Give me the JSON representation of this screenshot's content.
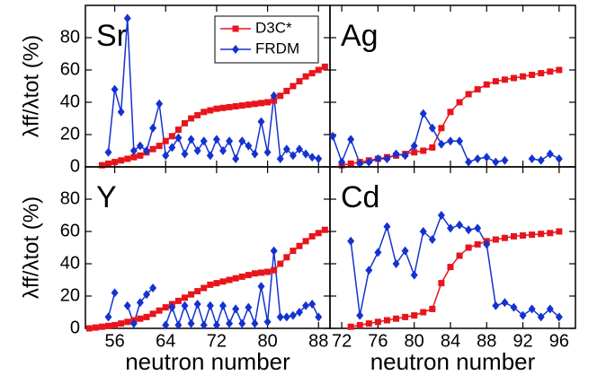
{
  "chart_data": [
    {
      "type": "line",
      "panel_label": "Sr",
      "y_label": "λff/λtot (%)",
      "x": [
        54,
        55,
        56,
        57,
        58,
        59,
        60,
        61,
        62,
        63,
        64,
        65,
        66,
        67,
        68,
        69,
        70,
        71,
        72,
        73,
        74,
        75,
        76,
        77,
        78,
        79,
        80,
        81,
        82,
        83,
        84,
        85,
        86,
        87,
        88,
        89
      ],
      "series": [
        {
          "name": "D3C*",
          "color": "#e8141c",
          "marker": "square",
          "values": [
            1,
            2,
            3,
            4,
            5,
            6,
            7,
            9,
            11,
            13,
            16,
            19,
            23,
            27,
            30,
            32,
            34,
            35,
            36,
            36.5,
            37,
            37.5,
            38,
            38.5,
            39,
            39.5,
            40,
            41,
            44,
            47,
            50,
            53,
            56,
            58,
            60,
            62
          ]
        },
        {
          "name": "FRDM",
          "color": "#1432d0",
          "marker": "diamond",
          "values": [
            null,
            9,
            48,
            34,
            92,
            10,
            13,
            10,
            24,
            39,
            7,
            12,
            18,
            8,
            17,
            10,
            16,
            7,
            17,
            10,
            16,
            5,
            16,
            13,
            8,
            28,
            9,
            44,
            5,
            11,
            7,
            11,
            8,
            6,
            5,
            null
          ]
        }
      ],
      "xlim": [
        51.4,
        89.8
      ],
      "ylim": [
        0,
        100
      ],
      "xticks": [
        56,
        64,
        72,
        80,
        88
      ],
      "yticks": [
        0,
        20,
        40,
        60,
        80
      ]
    },
    {
      "type": "line",
      "panel_label": "Ag",
      "x": [
        71,
        72,
        73,
        74,
        75,
        76,
        77,
        78,
        79,
        80,
        81,
        82,
        83,
        84,
        85,
        86,
        87,
        88,
        89,
        90,
        91,
        92,
        93,
        94,
        95,
        96
      ],
      "series": [
        {
          "color": "#e8141c",
          "marker": "square",
          "values": [
            null,
            1,
            2,
            3,
            4,
            5,
            6,
            7,
            8,
            9,
            10,
            12,
            24,
            34,
            40,
            45,
            48,
            51,
            53,
            54,
            55,
            56,
            57,
            58,
            59,
            60
          ]
        },
        {
          "color": "#1432d0",
          "marker": "diamond",
          "values": [
            19,
            3,
            17,
            2,
            3,
            5,
            5,
            8,
            7,
            13,
            33,
            24,
            14,
            16,
            16,
            3,
            5,
            6,
            3,
            4,
            null,
            null,
            5,
            4,
            8,
            5
          ]
        }
      ],
      "xlim": [
        70.7,
        97.8
      ],
      "ylim": [
        0,
        100
      ],
      "xticks": [
        72,
        76,
        80,
        84,
        88,
        92,
        96
      ],
      "yticks": [
        0,
        20,
        40,
        60,
        80
      ]
    },
    {
      "type": "line",
      "panel_label": "Y",
      "y_label": "λff/λtot (%)",
      "x_label": "neutron number",
      "x": [
        52,
        53,
        54,
        55,
        56,
        57,
        58,
        59,
        60,
        61,
        62,
        63,
        64,
        65,
        66,
        67,
        68,
        69,
        70,
        71,
        72,
        73,
        74,
        75,
        76,
        77,
        78,
        79,
        80,
        81,
        82,
        83,
        84,
        85,
        86,
        87,
        88,
        89
      ],
      "series": [
        {
          "color": "#e8141c",
          "marker": "square",
          "values": [
            0,
            0.5,
            1,
            1.5,
            2,
            3,
            4,
            5,
            6,
            7,
            9,
            11,
            13,
            15,
            17,
            19,
            21,
            23,
            25,
            27,
            28,
            29,
            30,
            31,
            32,
            33,
            34,
            34.5,
            35,
            36,
            40,
            44,
            48,
            51,
            54,
            57,
            59,
            61
          ]
        },
        {
          "color": "#1432d0",
          "marker": "diamond",
          "values": [
            null,
            null,
            null,
            7,
            22,
            null,
            14,
            3,
            16,
            21,
            25,
            null,
            2,
            13,
            2,
            14,
            3,
            15,
            2,
            14,
            2,
            14,
            3,
            12,
            3,
            13,
            3,
            26,
            4,
            48,
            7,
            7,
            8,
            10,
            14,
            15,
            7,
            null
          ]
        }
      ],
      "xlim": [
        51.4,
        89.8
      ],
      "ylim": [
        0,
        100
      ],
      "xticks": [
        56,
        64,
        72,
        80,
        88
      ],
      "yticks": [
        0,
        20,
        40,
        60,
        80
      ]
    },
    {
      "type": "line",
      "panel_label": "Cd",
      "x_label": "neutron number",
      "x": [
        73,
        74,
        75,
        76,
        77,
        78,
        79,
        80,
        81,
        82,
        83,
        84,
        85,
        86,
        87,
        88,
        89,
        90,
        91,
        92,
        93,
        94,
        95,
        96
      ],
      "series": [
        {
          "color": "#e8141c",
          "marker": "square",
          "values": [
            1,
            2,
            3,
            4,
            5,
            6,
            7,
            8,
            10,
            12,
            28,
            38,
            45,
            50,
            52,
            54,
            55,
            56,
            57,
            57.5,
            58,
            58.5,
            59,
            60
          ]
        },
        {
          "color": "#1432d0",
          "marker": "diamond",
          "values": [
            54,
            8,
            36,
            47,
            63,
            40,
            48,
            33,
            60,
            55,
            70,
            62,
            64,
            61,
            62,
            52,
            14,
            16,
            13,
            8,
            12,
            7,
            12,
            7
          ]
        }
      ],
      "xlim": [
        70.7,
        97.8
      ],
      "ylim": [
        0,
        100
      ],
      "xticks": [
        72,
        76,
        80,
        84,
        88,
        92,
        96
      ],
      "yticks": [
        0,
        20,
        40,
        60,
        80
      ]
    }
  ]
}
